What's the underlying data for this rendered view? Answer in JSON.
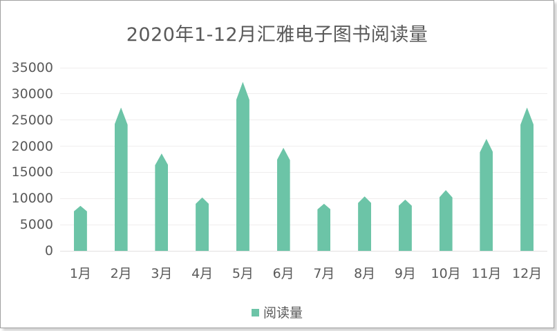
{
  "colors": {
    "bar": "#6CC4A7",
    "text": "#595959",
    "gridline": "#EFEDED",
    "axis_line": "#E2E0E0",
    "border": "#9F9F9F",
    "background": "#FFFFFF"
  },
  "legend": {
    "label": "阅读量",
    "marker": "small-square",
    "position": "bottom-center"
  },
  "chart_data": {
    "type": "bar",
    "title": "2020年1-12月汇雅电子图书阅读量",
    "categories": [
      "1月",
      "2月",
      "3月",
      "4月",
      "5月",
      "6月",
      "7月",
      "8月",
      "9月",
      "10月",
      "11月",
      "12月"
    ],
    "series": [
      {
        "name": "阅读量",
        "values": [
          8600,
          27400,
          18600,
          10200,
          32300,
          19700,
          9000,
          10400,
          9800,
          11600,
          21400,
          27400
        ]
      }
    ],
    "xlabel": "",
    "ylabel": "",
    "ylim": [
      0,
      35000
    ],
    "y_ticks": [
      0,
      5000,
      10000,
      15000,
      20000,
      25000,
      30000,
      35000
    ],
    "grid": "horizontal",
    "legend_position": "bottom",
    "bar_style": "pointed-top",
    "bar_color": "#6CC4A7"
  }
}
